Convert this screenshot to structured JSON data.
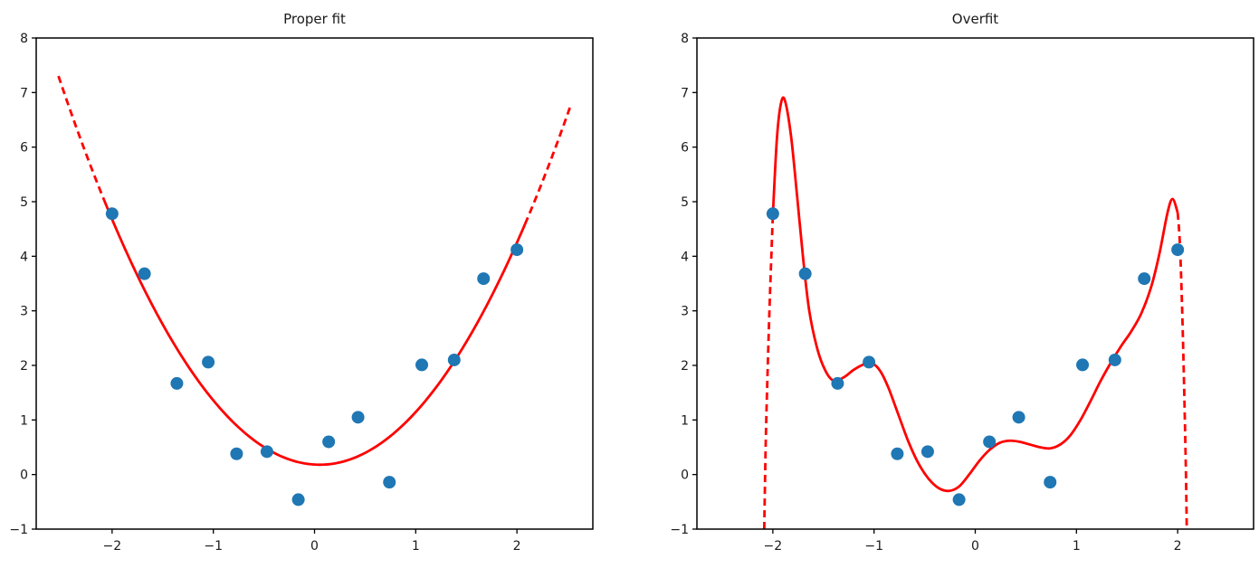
{
  "chart_data": {
    "type": "scatter",
    "description": "Two-panel matplotlib-style figure comparing a proper polynomial fit and an overfit curve on the same noisy data",
    "grid": false,
    "legend": null,
    "scatter": {
      "x": [
        -2.0,
        -1.68,
        -1.36,
        -1.05,
        -0.77,
        -0.47,
        -0.16,
        0.14,
        0.43,
        0.74,
        1.06,
        1.38,
        1.67,
        2.0
      ],
      "y": [
        4.78,
        3.68,
        1.67,
        2.06,
        0.38,
        0.42,
        -0.46,
        0.6,
        1.05,
        -0.14,
        2.01,
        2.1,
        3.59,
        4.12
      ],
      "color": "#1f77b4",
      "marker_radius": 7
    },
    "fit_color": "#ff0000",
    "plots": [
      {
        "title": "Proper fit",
        "xlabel": "",
        "ylabel": "",
        "xlim": [
          -2.75,
          2.75
        ],
        "ylim": [
          -1,
          8
        ],
        "xticks": [
          -2,
          -1,
          0,
          1,
          2
        ],
        "yticks": [
          -1,
          0,
          1,
          2,
          3,
          4,
          5,
          6,
          7,
          8
        ],
        "fit": {
          "kind": "quadratic",
          "a": 1.07,
          "h": 0.05,
          "k": 0.18,
          "solid_range": [
            -2.08,
            2.08
          ],
          "dashed_ranges": [
            [
              -2.53,
              -2.08
            ],
            [
              2.08,
              2.53
            ]
          ]
        }
      },
      {
        "title": "Overfit",
        "xlabel": "",
        "ylabel": "",
        "xlim": [
          -2.75,
          2.75
        ],
        "ylim": [
          -1,
          8
        ],
        "xticks": [
          -2,
          -1,
          0,
          1,
          2
        ],
        "yticks": [
          -1,
          0,
          1,
          2,
          3,
          4,
          5,
          6,
          7,
          8
        ],
        "fit": {
          "kind": "sampled",
          "solid": [
            [
              -2.0,
              4.75
            ],
            [
              -1.96,
              6.15
            ],
            [
              -1.92,
              6.8
            ],
            [
              -1.88,
              6.85
            ],
            [
              -1.82,
              6.2
            ],
            [
              -1.76,
              5.1
            ],
            [
              -1.7,
              3.95
            ],
            [
              -1.64,
              3.0
            ],
            [
              -1.56,
              2.3
            ],
            [
              -1.48,
              1.9
            ],
            [
              -1.4,
              1.72
            ],
            [
              -1.3,
              1.78
            ],
            [
              -1.2,
              1.92
            ],
            [
              -1.1,
              2.02
            ],
            [
              -1.02,
              2.04
            ],
            [
              -0.94,
              1.9
            ],
            [
              -0.86,
              1.6
            ],
            [
              -0.76,
              1.1
            ],
            [
              -0.66,
              0.6
            ],
            [
              -0.56,
              0.2
            ],
            [
              -0.46,
              -0.08
            ],
            [
              -0.36,
              -0.25
            ],
            [
              -0.26,
              -0.3
            ],
            [
              -0.16,
              -0.22
            ],
            [
              -0.06,
              0.0
            ],
            [
              0.04,
              0.25
            ],
            [
              0.14,
              0.45
            ],
            [
              0.24,
              0.58
            ],
            [
              0.34,
              0.62
            ],
            [
              0.44,
              0.6
            ],
            [
              0.54,
              0.55
            ],
            [
              0.64,
              0.5
            ],
            [
              0.74,
              0.48
            ],
            [
              0.84,
              0.55
            ],
            [
              0.94,
              0.72
            ],
            [
              1.04,
              1.0
            ],
            [
              1.14,
              1.35
            ],
            [
              1.24,
              1.72
            ],
            [
              1.34,
              2.05
            ],
            [
              1.44,
              2.35
            ],
            [
              1.54,
              2.62
            ],
            [
              1.64,
              2.95
            ],
            [
              1.74,
              3.45
            ],
            [
              1.82,
              4.05
            ],
            [
              1.9,
              4.8
            ],
            [
              1.95,
              5.05
            ],
            [
              2.0,
              4.8
            ]
          ],
          "dashed": [
            [
              [
                -2.085,
                -1.0
              ],
              [
                -2.07,
                0.6
              ],
              [
                -2.05,
                2.0
              ],
              [
                -2.03,
                3.2
              ],
              [
                -2.0,
                4.75
              ]
            ],
            [
              [
                2.0,
                4.8
              ],
              [
                2.02,
                4.3
              ],
              [
                2.04,
                3.3
              ],
              [
                2.06,
                1.9
              ],
              [
                2.08,
                0.2
              ],
              [
                2.09,
                -1.0
              ]
            ]
          ]
        }
      }
    ]
  }
}
